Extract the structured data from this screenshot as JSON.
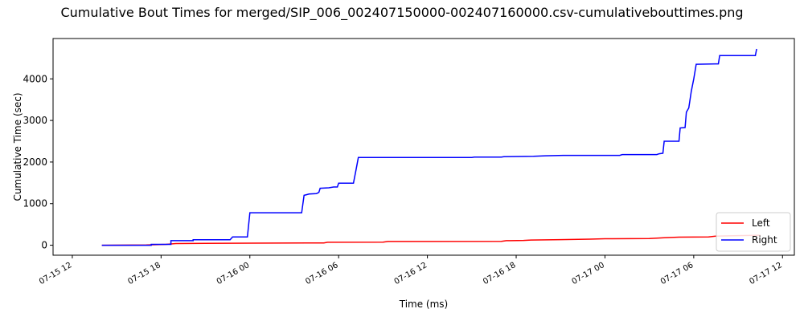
{
  "chart_data": {
    "type": "line",
    "title": "Cumulative Bout Times for merged/SIP_006_002407150000-002407160000.csv-cumulativebouttimes.png",
    "xlabel": "Time (ms)",
    "ylabel": "Cumulative Time (sec)",
    "x_axis": {
      "type": "datetime",
      "range": [
        "2024-07-15 10:42",
        "2024-07-17 12:48"
      ],
      "tick_values": [
        "2024-07-15 12:00",
        "2024-07-15 18:00",
        "2024-07-16 00:00",
        "2024-07-16 06:00",
        "2024-07-16 12:00",
        "2024-07-16 18:00",
        "2024-07-17 00:00",
        "2024-07-17 06:00",
        "2024-07-17 12:00"
      ],
      "tick_labels": [
        "07-15 12",
        "07-15 18",
        "07-16 00",
        "07-16 06",
        "07-16 12",
        "07-16 18",
        "07-17 00",
        "07-17 06",
        "07-17 12"
      ]
    },
    "y_axis": {
      "range": [
        -240,
        4970
      ],
      "ticks": [
        0,
        1000,
        2000,
        3000,
        4000
      ],
      "tick_labels": [
        "0",
        "1000",
        "2000",
        "3000",
        "4000"
      ]
    },
    "grid": false,
    "legend_position": "lower-right",
    "series": [
      {
        "name": "Left",
        "color": "#ff0000",
        "points": [
          [
            "2024-07-15 14:00",
            0
          ],
          [
            "2024-07-15 17:00",
            5
          ],
          [
            "2024-07-15 18:20",
            20
          ],
          [
            "2024-07-15 19:00",
            40
          ],
          [
            "2024-07-16 00:00",
            50
          ],
          [
            "2024-07-16 05:00",
            55
          ],
          [
            "2024-07-16 05:15",
            70
          ],
          [
            "2024-07-16 09:00",
            75
          ],
          [
            "2024-07-16 09:20",
            90
          ],
          [
            "2024-07-16 17:00",
            92
          ],
          [
            "2024-07-16 17:20",
            110
          ],
          [
            "2024-07-16 18:30",
            115
          ],
          [
            "2024-07-16 19:00",
            125
          ],
          [
            "2024-07-16 21:00",
            135
          ],
          [
            "2024-07-16 23:00",
            145
          ],
          [
            "2024-07-17 00:00",
            155
          ],
          [
            "2024-07-17 03:00",
            160
          ],
          [
            "2024-07-17 04:00",
            180
          ],
          [
            "2024-07-17 05:00",
            195
          ],
          [
            "2024-07-17 07:00",
            200
          ],
          [
            "2024-07-17 07:30",
            220
          ],
          [
            "2024-07-17 09:00",
            230
          ],
          [
            "2024-07-17 10:30",
            240
          ]
        ]
      },
      {
        "name": "Right",
        "color": "#0000ff",
        "points": [
          [
            "2024-07-15 14:00",
            0
          ],
          [
            "2024-07-15 17:20",
            0
          ],
          [
            "2024-07-15 17:20",
            20
          ],
          [
            "2024-07-15 18:40",
            20
          ],
          [
            "2024-07-15 18:40",
            110
          ],
          [
            "2024-07-15 20:10",
            110
          ],
          [
            "2024-07-15 20:10",
            130
          ],
          [
            "2024-07-15 22:40",
            130
          ],
          [
            "2024-07-15 22:50",
            200
          ],
          [
            "2024-07-15 23:50",
            200
          ],
          [
            "2024-07-16 00:00",
            780
          ],
          [
            "2024-07-16 03:30",
            780
          ],
          [
            "2024-07-16 03:40",
            1200
          ],
          [
            "2024-07-16 04:00",
            1230
          ],
          [
            "2024-07-16 04:30",
            1240
          ],
          [
            "2024-07-16 04:40",
            1270
          ],
          [
            "2024-07-16 04:45",
            1370
          ],
          [
            "2024-07-16 05:20",
            1380
          ],
          [
            "2024-07-16 05:40",
            1400
          ],
          [
            "2024-07-16 05:55",
            1400
          ],
          [
            "2024-07-16 06:00",
            1490
          ],
          [
            "2024-07-16 07:00",
            1490
          ],
          [
            "2024-07-16 07:10",
            1800
          ],
          [
            "2024-07-16 07:20",
            2110
          ],
          [
            "2024-07-16 15:00",
            2110
          ],
          [
            "2024-07-16 15:10",
            2120
          ],
          [
            "2024-07-16 17:00",
            2120
          ],
          [
            "2024-07-16 17:10",
            2130
          ],
          [
            "2024-07-16 19:10",
            2140
          ],
          [
            "2024-07-16 20:00",
            2150
          ],
          [
            "2024-07-16 21:10",
            2160
          ],
          [
            "2024-07-17 01:00",
            2160
          ],
          [
            "2024-07-17 01:10",
            2180
          ],
          [
            "2024-07-17 03:30",
            2180
          ],
          [
            "2024-07-17 03:40",
            2200
          ],
          [
            "2024-07-17 03:55",
            2210
          ],
          [
            "2024-07-17 04:00",
            2500
          ],
          [
            "2024-07-17 05:00",
            2500
          ],
          [
            "2024-07-17 05:05",
            2820
          ],
          [
            "2024-07-17 05:25",
            2830
          ],
          [
            "2024-07-17 05:30",
            3200
          ],
          [
            "2024-07-17 05:40",
            3300
          ],
          [
            "2024-07-17 05:50",
            3700
          ],
          [
            "2024-07-17 06:00",
            4000
          ],
          [
            "2024-07-17 06:10",
            4350
          ],
          [
            "2024-07-17 07:40",
            4360
          ],
          [
            "2024-07-17 07:45",
            4560
          ],
          [
            "2024-07-17 10:10",
            4560
          ],
          [
            "2024-07-17 10:15",
            4720
          ]
        ]
      }
    ]
  }
}
